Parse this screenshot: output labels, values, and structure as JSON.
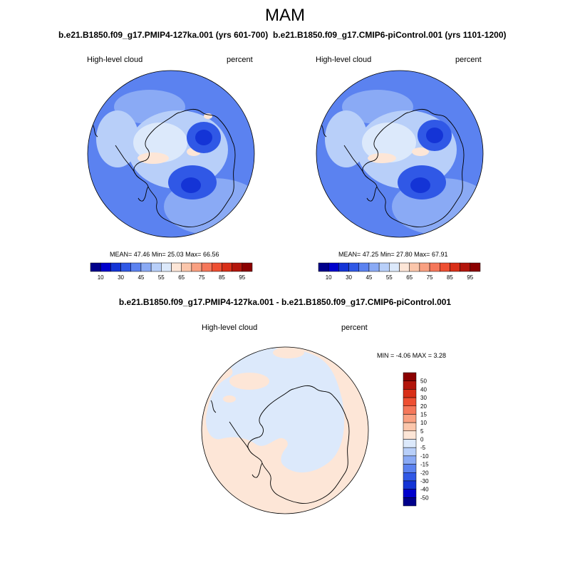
{
  "season": "MAM",
  "panels": {
    "left": {
      "case_title": "b.e21.B1850.f09_g17.PMIP4-127ka.001 (yrs 601-700)",
      "variable": "High-level cloud",
      "units": "percent",
      "mean_label": "MEAN=",
      "mean": "47.46",
      "min_label": "Min=",
      "min": "25.03",
      "max_label": "Max=",
      "max": "66.56"
    },
    "right": {
      "case_title": "b.e21.B1850.f09_g17.CMIP6-piControl.001 (yrs 1101-1200)",
      "variable": "High-level cloud",
      "units": "percent",
      "mean_label": "MEAN=",
      "mean": "47.25",
      "min_label": "Min=",
      "min": "27.80",
      "max_label": "Max=",
      "max": "67.91"
    },
    "diff": {
      "title": "b.e21.B1850.f09_g17.PMIP4-127ka.001 - b.e21.B1850.f09_g17.CMIP6-piControl.001",
      "variable": "High-level cloud",
      "units": "percent",
      "minmax_text": "MIN =  -4.06 MAX =   3.28"
    }
  },
  "colorbar_main": {
    "tick_labels": [
      "10",
      "30",
      "45",
      "55",
      "65",
      "75",
      "85",
      "95"
    ],
    "colors": [
      "#00008b",
      "#0000cd",
      "#1434d6",
      "#3058e6",
      "#5b82f0",
      "#8aaaf5",
      "#b8cff9",
      "#dce9fb",
      "#fde6d7",
      "#fbc6ab",
      "#f9a081",
      "#f5775a",
      "#ee4f32",
      "#d92f18",
      "#b3160c",
      "#8b0000"
    ]
  },
  "colorbar_diff": {
    "tick_labels": [
      "50",
      "40",
      "30",
      "20",
      "15",
      "10",
      "5",
      "0",
      "-5",
      "-10",
      "-15",
      "-20",
      "-30",
      "-40",
      "-50"
    ],
    "colors": [
      "#8b0000",
      "#b3160c",
      "#d92f18",
      "#ee4f32",
      "#f5775a",
      "#f9a081",
      "#fbc6ab",
      "#fde6d7",
      "#dce9fb",
      "#b8cff9",
      "#8aaaf5",
      "#5b82f0",
      "#3058e6",
      "#1434d6",
      "#0000cd",
      "#00008b"
    ]
  },
  "map_colors": {
    "ocean_mid": "#5b82f0",
    "ocean_light": "#8aaaf5",
    "pale_blue": "#b8cff9",
    "very_pale": "#dce9fb",
    "peach": "#fde6d7",
    "blue": "#3058e6",
    "deep_blue": "#1434d6",
    "diff_peach": "#fde6d7",
    "diff_blue": "#dce9fb"
  }
}
